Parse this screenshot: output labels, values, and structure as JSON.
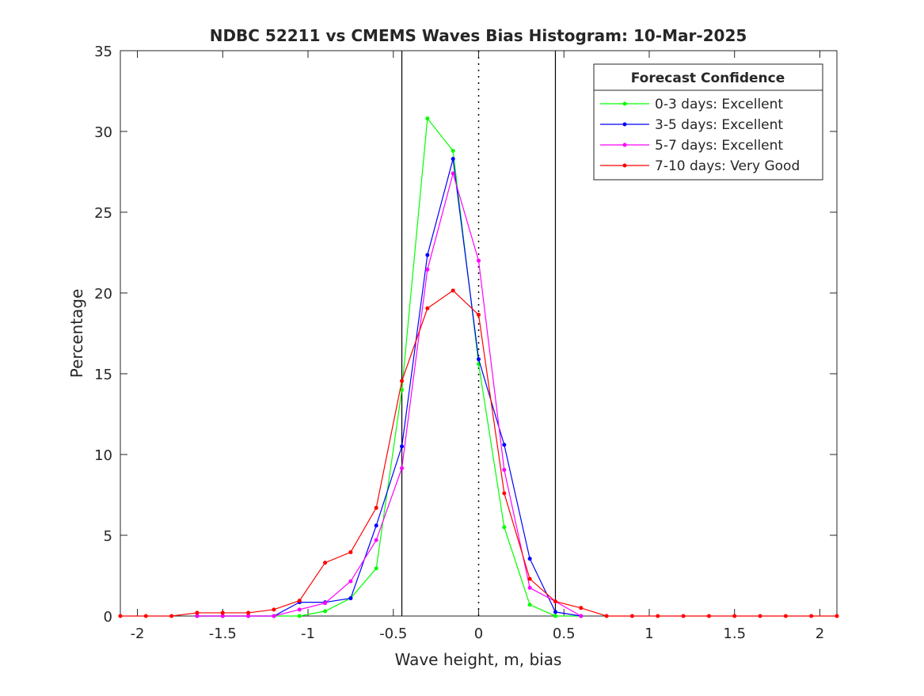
{
  "chart_data": {
    "type": "line",
    "title": "NDBC 52211 vs CMEMS Waves Bias Histogram: 10-Mar-2025",
    "xlabel": "Wave height, m, bias",
    "ylabel": "Percentage",
    "xlim": [
      -2.1,
      2.1
    ],
    "ylim": [
      0,
      35
    ],
    "xticks": [
      -2,
      -1.5,
      -1,
      -0.5,
      0,
      0.5,
      1,
      1.5,
      2
    ],
    "xtick_labels": [
      "-2",
      "-1.5",
      "-1",
      "-0.5",
      "0",
      "0.5",
      "1",
      "1.5",
      "2"
    ],
    "yticks": [
      0,
      5,
      10,
      15,
      20,
      25,
      30,
      35
    ],
    "ytick_labels": [
      "0",
      "5",
      "10",
      "15",
      "20",
      "25",
      "30",
      "35"
    ],
    "vlines_solid": [
      -0.45,
      0.45
    ],
    "vline_dotted": 0,
    "grid": false,
    "legend": {
      "title": "Forecast Confidence",
      "placement": "top-right"
    },
    "series": [
      {
        "name": "0-3 days: Excellent",
        "color": "#00ff00",
        "x": [
          -1.65,
          -1.5,
          -1.35,
          -1.2,
          -1.05,
          -0.9,
          -0.75,
          -0.6,
          -0.45,
          -0.3,
          -0.15,
          0,
          0.15,
          0.3,
          0.45,
          0.6
        ],
        "y": [
          0,
          0,
          0,
          0,
          0,
          0.3,
          1.1,
          2.95,
          14.0,
          30.8,
          28.8,
          15.6,
          5.5,
          0.7,
          0,
          0
        ]
      },
      {
        "name": "3-5 days: Excellent",
        "color": "#0000ff",
        "x": [
          -1.65,
          -1.5,
          -1.35,
          -1.2,
          -1.05,
          -0.9,
          -0.75,
          -0.6,
          -0.45,
          -0.3,
          -0.15,
          0,
          0.15,
          0.3,
          0.45,
          0.6
        ],
        "y": [
          0,
          0,
          0,
          0,
          0.85,
          0.85,
          1.1,
          5.6,
          10.5,
          22.35,
          28.3,
          15.9,
          10.6,
          3.55,
          0.25,
          0
        ]
      },
      {
        "name": "5-7 days: Excellent",
        "color": "#ff00ff",
        "x": [
          -1.65,
          -1.5,
          -1.35,
          -1.2,
          -1.05,
          -0.9,
          -0.75,
          -0.6,
          -0.45,
          -0.3,
          -0.15,
          0,
          0.15,
          0.3,
          0.45,
          0.6
        ],
        "y": [
          0,
          0,
          0,
          0,
          0.4,
          0.8,
          2.15,
          4.7,
          9.15,
          21.45,
          27.4,
          22.0,
          9.05,
          1.75,
          0.9,
          0
        ]
      },
      {
        "name": "7-10 days: Very Good",
        "color": "#ff0000",
        "x": [
          -2.1,
          -1.95,
          -1.8,
          -1.65,
          -1.5,
          -1.35,
          -1.2,
          -1.05,
          -0.9,
          -0.75,
          -0.6,
          -0.45,
          -0.3,
          -0.15,
          0,
          0.15,
          0.3,
          0.45,
          0.6,
          0.75,
          0.9,
          1.05,
          1.2,
          1.35,
          1.5,
          1.65,
          1.8,
          1.95,
          2.1
        ],
        "y": [
          0,
          0,
          0,
          0.2,
          0.2,
          0.2,
          0.4,
          0.95,
          3.3,
          3.95,
          6.7,
          14.55,
          19.05,
          20.15,
          18.65,
          7.6,
          2.3,
          0.9,
          0.5,
          0,
          0,
          0,
          0,
          0,
          0,
          0,
          0,
          0,
          0
        ]
      }
    ]
  }
}
